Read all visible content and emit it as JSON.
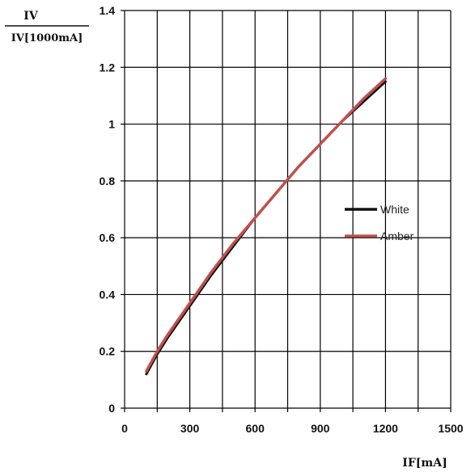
{
  "chart_data": {
    "type": "line",
    "ylabel_numerator": "IV",
    "ylabel_denominator": "IV[1000mA]",
    "xlabel": "IF[mA]",
    "xlim": [
      0,
      1500
    ],
    "ylim": [
      0,
      1.4
    ],
    "x_ticks": [
      "0",
      "300",
      "600",
      "900",
      "1200",
      "1500"
    ],
    "y_ticks": [
      "0",
      "0.2",
      "0.4",
      "0.6",
      "0.8",
      "1",
      "1.2",
      "1.4"
    ],
    "x_tick_values": [
      0,
      300,
      600,
      900,
      1200,
      1500
    ],
    "y_tick_values": [
      0,
      0.2,
      0.4,
      0.6,
      0.8,
      1,
      1.2,
      1.4
    ],
    "x_grid_values": [
      0,
      150,
      300,
      450,
      600,
      750,
      900,
      1050,
      1200,
      1350,
      1500
    ],
    "y_grid_values": [
      0,
      0.2,
      0.4,
      0.6,
      0.8,
      1.0,
      1.2,
      1.4
    ],
    "grid": true,
    "legend_position": "right",
    "series": [
      {
        "name": "White",
        "color": "#111111",
        "x": [
          100,
          150,
          200,
          300,
          400,
          500,
          600,
          700,
          800,
          900,
          1000,
          1100,
          1200
        ],
        "y": [
          0.12,
          0.19,
          0.25,
          0.36,
          0.47,
          0.57,
          0.67,
          0.76,
          0.85,
          0.93,
          1.01,
          1.08,
          1.15
        ]
      },
      {
        "name": "Amber",
        "color": "#c0504d",
        "x": [
          100,
          150,
          200,
          300,
          400,
          500,
          600,
          700,
          800,
          900,
          1000,
          1100,
          1200
        ],
        "y": [
          0.13,
          0.2,
          0.26,
          0.37,
          0.48,
          0.58,
          0.67,
          0.76,
          0.85,
          0.93,
          1.01,
          1.09,
          1.16
        ]
      }
    ]
  }
}
